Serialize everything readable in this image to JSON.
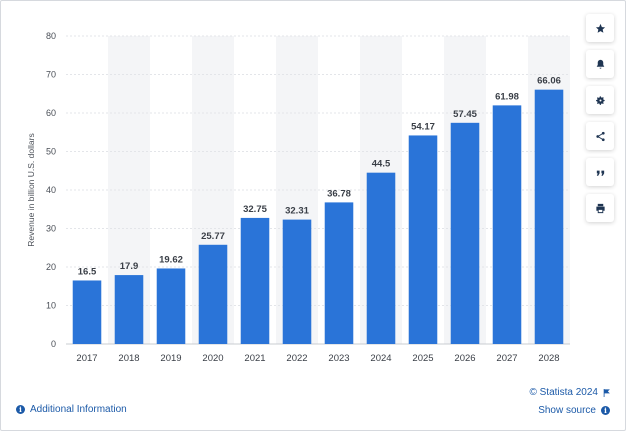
{
  "chart_data": {
    "type": "bar",
    "categories": [
      "2017",
      "2018",
      "2019",
      "2020",
      "2021",
      "2022",
      "2023",
      "2024",
      "2025",
      "2026",
      "2027",
      "2028"
    ],
    "values": [
      16.5,
      17.9,
      19.62,
      25.77,
      32.75,
      32.31,
      36.78,
      44.5,
      54.17,
      57.45,
      61.98,
      66.06
    ],
    "data_labels": [
      "16.5",
      "17.9",
      "19.62",
      "25.77",
      "32.75",
      "32.31",
      "36.78",
      "44.5",
      "54.17",
      "57.45",
      "61.98",
      "66.06"
    ],
    "ylabel": "Revenue in billion U.S. dollars",
    "xlabel": "",
    "ylim": [
      0,
      80
    ],
    "yticks": [
      0,
      10,
      20,
      30,
      40,
      50,
      60,
      70,
      80
    ],
    "grid": true,
    "bar_color": "#2a74d8",
    "band_color": "#f4f5f7"
  },
  "toolbar": {
    "buttons": [
      "star-icon",
      "bell-icon",
      "gear-icon",
      "share-icon",
      "quote-icon",
      "print-icon"
    ],
    "icon_color": "#1f3552"
  },
  "footer": {
    "additional_info": "Additional Information",
    "credit": "© Statista 2024",
    "show_source": "Show source",
    "link_color": "#1c5aa8"
  }
}
